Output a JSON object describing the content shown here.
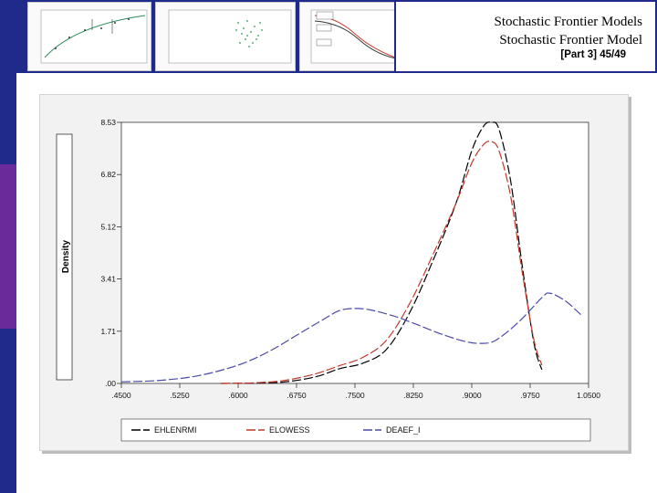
{
  "slide": {
    "title_line1": "Stochastic Frontier Models",
    "title_line2": "Stochastic Frontier Model",
    "slide_number": "[Part 3] 45/49"
  },
  "colors": {
    "sidebar": [
      "#1f2a8a",
      "#6a2a9a",
      "#1f2a8a"
    ],
    "header": "#1f2a8a"
  },
  "chart_data": {
    "type": "line",
    "ylabel": "Density",
    "xlabel": "",
    "xlim": [
      0.45,
      1.05
    ],
    "ylim": [
      0,
      8.53
    ],
    "x_ticks": [
      ".4500",
      ".5250",
      ".6000",
      ".6750",
      ".7500",
      ".8250",
      ".9000",
      ".9750",
      "1.0500"
    ],
    "y_ticks": [
      ".00",
      "1.71",
      "3.41",
      "5.12",
      "6.82",
      "8.53"
    ],
    "legend_position": "bottom",
    "grid": false,
    "series": [
      {
        "name": "EHLENRMI",
        "color": "#000000",
        "dash": "10,3",
        "points": [
          [
            0.578,
            0.0
          ],
          [
            0.62,
            0.01
          ],
          [
            0.66,
            0.05
          ],
          [
            0.7,
            0.22
          ],
          [
            0.73,
            0.48
          ],
          [
            0.76,
            0.66
          ],
          [
            0.79,
            1.1
          ],
          [
            0.82,
            2.3
          ],
          [
            0.85,
            4.0
          ],
          [
            0.88,
            5.9
          ],
          [
            0.9,
            7.6
          ],
          [
            0.915,
            8.4
          ],
          [
            0.925,
            8.53
          ],
          [
            0.935,
            8.3
          ],
          [
            0.95,
            6.6
          ],
          [
            0.965,
            3.8
          ],
          [
            0.98,
            1.3
          ],
          [
            0.99,
            0.45
          ]
        ]
      },
      {
        "name": "ELOWESS",
        "color": "#c0392b",
        "dash": "10,3",
        "points": [
          [
            0.578,
            0.0
          ],
          [
            0.62,
            0.02
          ],
          [
            0.66,
            0.1
          ],
          [
            0.7,
            0.32
          ],
          [
            0.73,
            0.58
          ],
          [
            0.76,
            0.85
          ],
          [
            0.79,
            1.4
          ],
          [
            0.82,
            2.6
          ],
          [
            0.85,
            4.2
          ],
          [
            0.88,
            5.9
          ],
          [
            0.9,
            7.2
          ],
          [
            0.915,
            7.8
          ],
          [
            0.925,
            7.9
          ],
          [
            0.935,
            7.6
          ],
          [
            0.95,
            6.1
          ],
          [
            0.965,
            3.6
          ],
          [
            0.98,
            1.4
          ],
          [
            0.99,
            0.6
          ]
        ]
      },
      {
        "name": "DEAEF_I",
        "color": "#4a4aaa",
        "dash": "10,3",
        "points": [
          [
            0.45,
            0.05
          ],
          [
            0.5,
            0.1
          ],
          [
            0.55,
            0.26
          ],
          [
            0.6,
            0.6
          ],
          [
            0.64,
            1.05
          ],
          [
            0.68,
            1.65
          ],
          [
            0.71,
            2.1
          ],
          [
            0.73,
            2.38
          ],
          [
            0.75,
            2.45
          ],
          [
            0.77,
            2.4
          ],
          [
            0.8,
            2.2
          ],
          [
            0.83,
            1.92
          ],
          [
            0.86,
            1.62
          ],
          [
            0.89,
            1.38
          ],
          [
            0.91,
            1.31
          ],
          [
            0.93,
            1.4
          ],
          [
            0.96,
            2.0
          ],
          [
            0.99,
            2.8
          ],
          [
            1.0,
            2.95
          ],
          [
            1.02,
            2.7
          ],
          [
            1.04,
            2.25
          ]
        ]
      }
    ]
  }
}
